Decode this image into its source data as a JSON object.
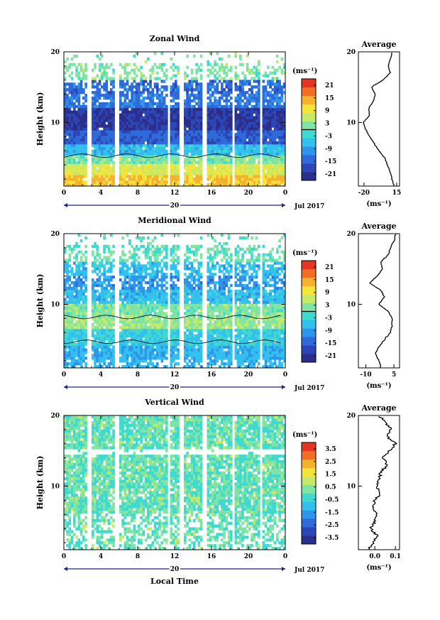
{
  "panels": [
    {
      "title": "Zonal Wind",
      "ylabel": "Height (km)",
      "yticks": [
        "20",
        "10"
      ],
      "xticks": [
        "0",
        "4",
        "8",
        "12",
        "16",
        "20",
        "0"
      ],
      "date_label": "20",
      "month_label": "Jul 2017",
      "units": "(ms⁻¹)",
      "cbar_ticks": [
        "21",
        "15",
        "9",
        "3",
        "-3",
        "-9",
        "-15",
        "-21"
      ],
      "avg_title": "Average",
      "avg_xticks": [
        "-20",
        "15"
      ],
      "avg_units": "(ms⁻¹)",
      "avg_yticks": [
        "20",
        "10"
      ]
    },
    {
      "title": "Meridional Wind",
      "ylabel": "Height (km)",
      "yticks": [
        "20",
        "10"
      ],
      "xticks": [
        "0",
        "4",
        "8",
        "12",
        "16",
        "20",
        "0"
      ],
      "date_label": "20",
      "month_label": "Jul 2017",
      "units": "(ms⁻¹)",
      "cbar_ticks": [
        "21",
        "15",
        "9",
        "3",
        "-3",
        "-9",
        "-15",
        "-21"
      ],
      "avg_title": "Average",
      "avg_xticks": [
        "-10",
        "5"
      ],
      "avg_units": "(ms⁻¹)",
      "avg_yticks": [
        "20",
        "10"
      ]
    },
    {
      "title": "Vertical Wind",
      "ylabel": "Height (km)",
      "yticks": [
        "20",
        "10"
      ],
      "xticks": [
        "0",
        "4",
        "8",
        "12",
        "16",
        "20",
        "0"
      ],
      "date_label": "20",
      "month_label": "Jul 2017",
      "units": "(ms⁻¹)",
      "cbar_ticks": [
        "3.5",
        "2.5",
        "1.5",
        "0.5",
        "-0.5",
        "-1.5",
        "-2.5",
        "-3.5"
      ],
      "avg_title": "Average",
      "avg_xticks": [
        "0.0",
        "0.1"
      ],
      "avg_units": "(ms⁻¹)",
      "avg_yticks": [
        "20",
        "10"
      ]
    }
  ],
  "xlabel": "Local Time",
  "colors": [
    "#2b2f8a",
    "#2c46b5",
    "#2f6ad9",
    "#2f95e8",
    "#33c0ef",
    "#3fd9d0",
    "#7fe4a4",
    "#c3ea6a",
    "#f4e43c",
    "#f5b22f",
    "#ef7025",
    "#e23522"
  ],
  "chart_data": [
    {
      "type": "heatmap",
      "title": "Zonal Wind",
      "xlabel": "Local Time",
      "ylabel": "Height (km)",
      "x_range": [
        0,
        24
      ],
      "y_range": [
        1,
        20
      ],
      "colorbar_range": [
        -24,
        24
      ],
      "gaps_hours": [
        [
          2.5,
          3.0
        ],
        [
          5.5,
          6.0
        ],
        [
          11.2,
          11.6
        ],
        [
          12.6,
          13.0
        ],
        [
          15.0,
          15.4
        ],
        [
          18.3,
          18.6
        ],
        [
          21.2,
          21.6
        ]
      ],
      "profile": [
        [
          20,
          10
        ],
        [
          19,
          8
        ],
        [
          18,
          6
        ],
        [
          17,
          8
        ],
        [
          16,
          0
        ],
        [
          15,
          -12
        ],
        [
          14,
          -8
        ],
        [
          13,
          -10
        ],
        [
          12,
          -15
        ],
        [
          11,
          -14
        ],
        [
          10,
          -21
        ],
        [
          9,
          -18
        ],
        [
          8,
          -14
        ],
        [
          7,
          -9
        ],
        [
          6,
          -4
        ],
        [
          5,
          2
        ],
        [
          4,
          5
        ],
        [
          3,
          8
        ],
        [
          2,
          10
        ],
        [
          1,
          12
        ]
      ]
    },
    {
      "type": "heatmap",
      "title": "Meridional Wind",
      "xlabel": "Local Time",
      "ylabel": "Height (km)",
      "x_range": [
        0,
        24
      ],
      "y_range": [
        1,
        20
      ],
      "colorbar_range": [
        -24,
        24
      ],
      "gaps_hours": [
        [
          2.5,
          3.0
        ],
        [
          5.5,
          6.0
        ],
        [
          11.2,
          11.6
        ],
        [
          12.6,
          13.0
        ],
        [
          15.0,
          15.4
        ],
        [
          18.3,
          18.6
        ],
        [
          21.2,
          21.6
        ]
      ],
      "profile": [
        [
          20,
          6
        ],
        [
          19,
          5
        ],
        [
          18,
          3
        ],
        [
          17,
          2
        ],
        [
          16,
          -2
        ],
        [
          15,
          -1
        ],
        [
          14,
          -4
        ],
        [
          13,
          -8
        ],
        [
          12,
          -2
        ],
        [
          11,
          0
        ],
        [
          10,
          -3
        ],
        [
          9,
          2
        ],
        [
          8,
          4
        ],
        [
          7,
          4
        ],
        [
          6,
          3
        ],
        [
          5,
          0
        ],
        [
          4,
          -3
        ],
        [
          3,
          -5
        ],
        [
          2,
          -3
        ],
        [
          1,
          -2
        ]
      ]
    },
    {
      "type": "heatmap",
      "title": "Vertical Wind",
      "xlabel": "Local Time",
      "ylabel": "Height (km)",
      "x_range": [
        0,
        24
      ],
      "y_range": [
        1,
        20
      ],
      "colorbar_range": [
        -4,
        4
      ],
      "gaps_hours": [
        [
          2.5,
          3.0
        ],
        [
          5.5,
          6.0
        ],
        [
          11.2,
          11.6
        ],
        [
          12.6,
          13.0
        ],
        [
          15.0,
          15.4
        ],
        [
          18.3,
          18.6
        ],
        [
          21.2,
          21.6
        ]
      ],
      "profile": [
        [
          20,
          0.02
        ],
        [
          19,
          0.05
        ],
        [
          18,
          0.08
        ],
        [
          17,
          0.06
        ],
        [
          16,
          0.1
        ],
        [
          15,
          0.07
        ],
        [
          14,
          0.04
        ],
        [
          13,
          0.06
        ],
        [
          12,
          0.03
        ],
        [
          11,
          0.02
        ],
        [
          10,
          0.01
        ],
        [
          9,
          0.03
        ],
        [
          8,
          0.0
        ],
        [
          7,
          -0.01
        ],
        [
          6,
          0.01
        ],
        [
          5,
          0.0
        ],
        [
          4,
          -0.02
        ],
        [
          3,
          0.01
        ],
        [
          2,
          -0.01
        ],
        [
          1,
          -0.03
        ]
      ]
    }
  ]
}
